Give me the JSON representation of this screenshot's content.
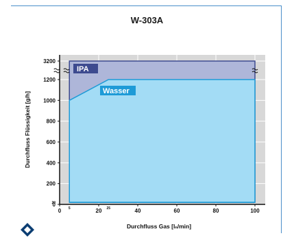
{
  "chart_data": {
    "type": "area",
    "title": "W-303A",
    "xlabel": "Durchfluss Gas [lₙ/min]",
    "ylabel": "Durchfluss Flüssigkeit [g/h]",
    "x_ticks": [
      "0",
      "20",
      "40",
      "60",
      "80",
      "100"
    ],
    "x_ticks_minor": [
      "5",
      "25"
    ],
    "y_ticks": [
      "0",
      "200",
      "400",
      "600",
      "800",
      "1000",
      "1200",
      "3200"
    ],
    "y_ticks_minor": [
      "20"
    ],
    "y_axis_break": "between 1200 and 3200",
    "xlim": [
      0,
      105
    ],
    "ylim": [
      0,
      3200
    ],
    "grid": true,
    "series": [
      {
        "name": "IPA",
        "color": "#3d4a8f",
        "fill": "#aeb6d9",
        "x": [
          5,
          100
        ],
        "y_min": [
          20,
          20
        ],
        "y_max": [
          3200,
          3200
        ]
      },
      {
        "name": "Wasser",
        "color": "#1e9bd7",
        "fill": "#a3dcf5",
        "x": [
          5,
          25,
          100
        ],
        "y_min": [
          20,
          20,
          20
        ],
        "y_max": [
          1000,
          1200,
          1200
        ]
      }
    ]
  },
  "logo": {
    "name": "diamond-logo",
    "color": "#0c3e73"
  }
}
